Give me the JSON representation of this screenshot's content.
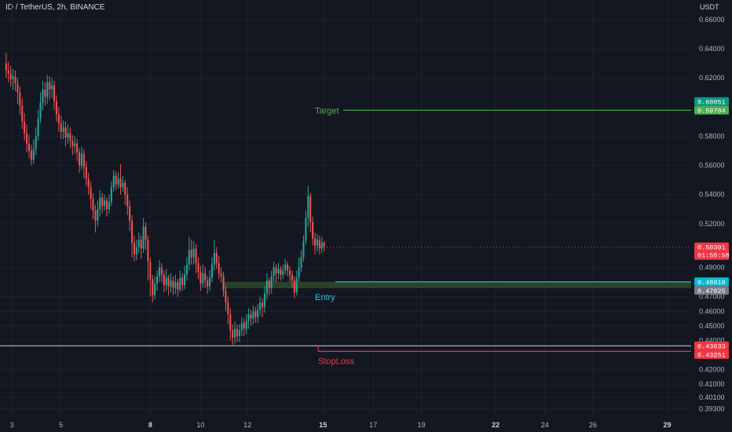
{
  "header": {
    "title": "ID / TetherUS, 2h, BINANCE",
    "currency": "USDT"
  },
  "colors": {
    "background": "#131722",
    "grid": "#1e222d",
    "up": "#26a69a",
    "down": "#ef5350",
    "target": "#4caf50",
    "entry": "#26c6da",
    "stop": "#f23645",
    "support": "#d1d4dc"
  },
  "chart_data": {
    "type": "candlestick",
    "ylim": [
      0.388,
      0.668
    ],
    "y_ticks": [
      0.66,
      0.64,
      0.62,
      0.58,
      0.56,
      0.54,
      0.52,
      0.49,
      0.47,
      0.46,
      0.45,
      0.44,
      0.42,
      0.41,
      0.401,
      0.393
    ],
    "y_tick_labels": [
      "0.66000",
      "0.64000",
      "0.62000",
      "0.58000",
      "0.56000",
      "0.54000",
      "0.52000",
      "0.49000",
      "0.47000",
      "0.46000",
      "0.45000",
      "0.44000",
      "0.42000",
      "0.41000",
      "0.40100",
      "0.39300"
    ],
    "x_ticks": [
      {
        "label": "3",
        "bold": false
      },
      {
        "label": "5",
        "bold": false
      },
      {
        "label": "8",
        "bold": true
      },
      {
        "label": "10",
        "bold": false
      },
      {
        "label": "12",
        "bold": false
      },
      {
        "label": "15",
        "bold": true
      },
      {
        "label": "17",
        "bold": false
      },
      {
        "label": "19",
        "bold": false
      },
      {
        "label": "22",
        "bold": true
      },
      {
        "label": "24",
        "bold": false
      },
      {
        "label": "26",
        "bold": false
      },
      {
        "label": "29",
        "bold": true
      }
    ],
    "x_tick_positions": [
      0.5,
      4.8,
      12.6,
      17.0,
      21.1,
      27.7,
      32.1,
      36.3,
      42.8,
      47.1,
      51.3,
      57.8
    ],
    "x_domain": [
      -1.5,
      62.5
    ],
    "candles": [
      [
        0,
        0.63,
        0.625,
        0.637,
        0.62
      ],
      [
        0.2,
        0.625,
        0.623,
        0.631,
        0.617
      ],
      [
        0.4,
        0.623,
        0.619,
        0.628,
        0.614
      ],
      [
        0.6,
        0.619,
        0.621,
        0.626,
        0.612
      ],
      [
        0.8,
        0.621,
        0.616,
        0.625,
        0.611
      ],
      [
        1.0,
        0.616,
        0.61,
        0.62,
        0.602
      ],
      [
        1.2,
        0.61,
        0.601,
        0.614,
        0.595
      ],
      [
        1.4,
        0.601,
        0.59,
        0.606,
        0.585
      ],
      [
        1.6,
        0.59,
        0.582,
        0.596,
        0.577
      ],
      [
        1.8,
        0.582,
        0.575,
        0.588,
        0.569
      ],
      [
        2.0,
        0.575,
        0.57,
        0.581,
        0.565
      ],
      [
        2.2,
        0.57,
        0.564,
        0.574,
        0.56
      ],
      [
        2.4,
        0.564,
        0.571,
        0.578,
        0.561
      ],
      [
        2.6,
        0.571,
        0.58,
        0.586,
        0.567
      ],
      [
        2.8,
        0.58,
        0.592,
        0.598,
        0.577
      ],
      [
        3.0,
        0.592,
        0.603,
        0.61,
        0.589
      ],
      [
        3.2,
        0.603,
        0.612,
        0.618,
        0.598
      ],
      [
        3.4,
        0.612,
        0.607,
        0.617,
        0.601
      ],
      [
        3.6,
        0.607,
        0.617,
        0.622,
        0.602
      ],
      [
        3.8,
        0.617,
        0.612,
        0.621,
        0.605
      ],
      [
        4.0,
        0.612,
        0.615,
        0.62,
        0.606
      ],
      [
        4.2,
        0.615,
        0.604,
        0.618,
        0.598
      ],
      [
        4.4,
        0.604,
        0.595,
        0.608,
        0.59
      ],
      [
        4.6,
        0.595,
        0.589,
        0.6,
        0.583
      ],
      [
        4.8,
        0.589,
        0.583,
        0.594,
        0.578
      ],
      [
        5.0,
        0.583,
        0.586,
        0.591,
        0.578
      ],
      [
        5.2,
        0.586,
        0.579,
        0.59,
        0.573
      ],
      [
        5.4,
        0.579,
        0.582,
        0.588,
        0.575
      ],
      [
        5.6,
        0.582,
        0.577,
        0.586,
        0.572
      ],
      [
        5.8,
        0.577,
        0.573,
        0.581,
        0.567
      ],
      [
        6.0,
        0.573,
        0.575,
        0.58,
        0.568
      ],
      [
        6.2,
        0.575,
        0.569,
        0.578,
        0.563
      ],
      [
        6.4,
        0.569,
        0.56,
        0.572,
        0.555
      ],
      [
        6.6,
        0.56,
        0.568,
        0.573,
        0.557
      ],
      [
        6.8,
        0.568,
        0.559,
        0.571,
        0.551
      ],
      [
        7.0,
        0.559,
        0.551,
        0.563,
        0.546
      ],
      [
        7.2,
        0.551,
        0.545,
        0.555,
        0.54
      ],
      [
        7.4,
        0.545,
        0.537,
        0.549,
        0.53
      ],
      [
        7.6,
        0.537,
        0.529,
        0.541,
        0.523
      ],
      [
        7.8,
        0.529,
        0.522,
        0.533,
        0.514
      ],
      [
        8.0,
        0.522,
        0.53,
        0.536,
        0.518
      ],
      [
        8.2,
        0.53,
        0.538,
        0.543,
        0.525
      ],
      [
        8.4,
        0.538,
        0.532,
        0.541,
        0.527
      ],
      [
        8.6,
        0.532,
        0.536,
        0.54,
        0.529
      ],
      [
        8.8,
        0.536,
        0.53,
        0.538,
        0.525
      ],
      [
        9.0,
        0.53,
        0.535,
        0.54,
        0.527
      ],
      [
        9.2,
        0.535,
        0.545,
        0.549,
        0.532
      ],
      [
        9.4,
        0.545,
        0.553,
        0.557,
        0.542
      ],
      [
        9.6,
        0.553,
        0.547,
        0.556,
        0.543
      ],
      [
        9.8,
        0.547,
        0.551,
        0.555,
        0.544
      ],
      [
        10.0,
        0.551,
        0.545,
        0.561,
        0.54
      ],
      [
        10.2,
        0.545,
        0.548,
        0.553,
        0.542
      ],
      [
        10.4,
        0.548,
        0.54,
        0.55,
        0.533
      ],
      [
        10.6,
        0.54,
        0.532,
        0.545,
        0.526
      ],
      [
        10.8,
        0.532,
        0.522,
        0.536,
        0.515
      ],
      [
        11.0,
        0.522,
        0.507,
        0.526,
        0.497
      ],
      [
        11.2,
        0.507,
        0.499,
        0.512,
        0.494
      ],
      [
        11.4,
        0.499,
        0.504,
        0.509,
        0.495
      ],
      [
        11.6,
        0.504,
        0.509,
        0.514,
        0.5
      ],
      [
        11.8,
        0.509,
        0.503,
        0.512,
        0.496
      ],
      [
        12.0,
        0.503,
        0.518,
        0.524,
        0.5
      ],
      [
        12.2,
        0.518,
        0.509,
        0.521,
        0.502
      ],
      [
        12.4,
        0.509,
        0.494,
        0.512,
        0.481
      ],
      [
        12.6,
        0.494,
        0.482,
        0.497,
        0.47
      ],
      [
        12.8,
        0.482,
        0.471,
        0.485,
        0.466
      ],
      [
        13.0,
        0.471,
        0.479,
        0.484,
        0.468
      ],
      [
        13.2,
        0.479,
        0.484,
        0.488,
        0.474
      ],
      [
        13.4,
        0.484,
        0.49,
        0.495,
        0.48
      ],
      [
        13.6,
        0.49,
        0.485,
        0.493,
        0.48
      ],
      [
        13.8,
        0.485,
        0.478,
        0.488,
        0.473
      ],
      [
        14.0,
        0.478,
        0.483,
        0.489,
        0.474
      ],
      [
        14.2,
        0.483,
        0.477,
        0.485,
        0.471
      ],
      [
        14.4,
        0.477,
        0.481,
        0.486,
        0.473
      ],
      [
        14.6,
        0.481,
        0.476,
        0.484,
        0.471
      ],
      [
        14.8,
        0.476,
        0.48,
        0.485,
        0.472
      ],
      [
        15.0,
        0.48,
        0.475,
        0.482,
        0.47
      ],
      [
        15.2,
        0.475,
        0.483,
        0.488,
        0.473
      ],
      [
        15.4,
        0.483,
        0.478,
        0.486,
        0.474
      ],
      [
        15.6,
        0.478,
        0.485,
        0.491,
        0.475
      ],
      [
        15.8,
        0.485,
        0.492,
        0.497,
        0.481
      ],
      [
        16.0,
        0.492,
        0.502,
        0.511,
        0.488
      ],
      [
        16.2,
        0.502,
        0.497,
        0.509,
        0.492
      ],
      [
        16.4,
        0.497,
        0.503,
        0.508,
        0.492
      ],
      [
        16.6,
        0.503,
        0.493,
        0.506,
        0.486
      ],
      [
        16.8,
        0.493,
        0.487,
        0.497,
        0.482
      ],
      [
        17.0,
        0.487,
        0.479,
        0.491,
        0.474
      ],
      [
        17.2,
        0.479,
        0.486,
        0.492,
        0.476
      ],
      [
        17.4,
        0.486,
        0.481,
        0.49,
        0.476
      ],
      [
        17.6,
        0.481,
        0.477,
        0.484,
        0.472
      ],
      [
        17.8,
        0.477,
        0.483,
        0.488,
        0.474
      ],
      [
        18.0,
        0.483,
        0.492,
        0.497,
        0.48
      ],
      [
        18.2,
        0.492,
        0.5,
        0.509,
        0.488
      ],
      [
        18.4,
        0.5,
        0.493,
        0.504,
        0.489
      ],
      [
        18.6,
        0.493,
        0.486,
        0.498,
        0.482
      ],
      [
        18.8,
        0.486,
        0.484,
        0.49,
        0.48
      ],
      [
        19.0,
        0.484,
        0.474,
        0.487,
        0.47
      ],
      [
        19.2,
        0.474,
        0.466,
        0.477,
        0.46
      ],
      [
        19.4,
        0.466,
        0.458,
        0.47,
        0.451
      ],
      [
        19.6,
        0.458,
        0.447,
        0.462,
        0.44
      ],
      [
        19.8,
        0.447,
        0.442,
        0.451,
        0.437
      ],
      [
        20.0,
        0.442,
        0.448,
        0.453,
        0.438
      ],
      [
        20.2,
        0.448,
        0.443,
        0.451,
        0.439
      ],
      [
        20.4,
        0.443,
        0.447,
        0.451,
        0.439
      ],
      [
        20.6,
        0.447,
        0.452,
        0.456,
        0.443
      ],
      [
        20.8,
        0.452,
        0.448,
        0.455,
        0.443
      ],
      [
        21.0,
        0.448,
        0.453,
        0.458,
        0.444
      ],
      [
        21.2,
        0.453,
        0.458,
        0.462,
        0.448
      ],
      [
        21.4,
        0.458,
        0.455,
        0.461,
        0.45
      ],
      [
        21.6,
        0.455,
        0.46,
        0.464,
        0.451
      ],
      [
        21.8,
        0.46,
        0.456,
        0.463,
        0.452
      ],
      [
        22.0,
        0.456,
        0.461,
        0.465,
        0.452
      ],
      [
        22.2,
        0.461,
        0.466,
        0.47,
        0.457
      ],
      [
        22.4,
        0.466,
        0.463,
        0.469,
        0.456
      ],
      [
        22.6,
        0.463,
        0.472,
        0.477,
        0.459
      ],
      [
        22.8,
        0.472,
        0.481,
        0.486,
        0.468
      ],
      [
        23.0,
        0.481,
        0.476,
        0.483,
        0.471
      ],
      [
        23.2,
        0.476,
        0.484,
        0.488,
        0.472
      ],
      [
        23.4,
        0.484,
        0.49,
        0.494,
        0.48
      ],
      [
        23.6,
        0.49,
        0.486,
        0.492,
        0.48
      ],
      [
        23.8,
        0.486,
        0.489,
        0.493,
        0.482
      ],
      [
        24.0,
        0.489,
        0.485,
        0.491,
        0.481
      ],
      [
        24.2,
        0.485,
        0.488,
        0.492,
        0.482
      ],
      [
        24.4,
        0.488,
        0.492,
        0.496,
        0.485
      ],
      [
        24.6,
        0.492,
        0.488,
        0.494,
        0.484
      ],
      [
        24.8,
        0.488,
        0.485,
        0.491,
        0.48
      ],
      [
        25.0,
        0.485,
        0.481,
        0.488,
        0.476
      ],
      [
        25.2,
        0.481,
        0.473,
        0.484,
        0.469
      ],
      [
        25.4,
        0.473,
        0.483,
        0.488,
        0.471
      ],
      [
        25.6,
        0.483,
        0.49,
        0.497,
        0.48
      ],
      [
        25.8,
        0.49,
        0.497,
        0.502,
        0.487
      ],
      [
        26.0,
        0.497,
        0.508,
        0.512,
        0.494
      ],
      [
        26.2,
        0.508,
        0.524,
        0.529,
        0.506
      ],
      [
        26.4,
        0.524,
        0.539,
        0.546,
        0.518
      ],
      [
        26.6,
        0.539,
        0.521,
        0.541,
        0.514
      ],
      [
        26.8,
        0.521,
        0.51,
        0.525,
        0.505
      ],
      [
        27.0,
        0.51,
        0.505,
        0.514,
        0.499
      ],
      [
        27.2,
        0.505,
        0.509,
        0.513,
        0.501
      ],
      [
        27.4,
        0.509,
        0.503,
        0.512,
        0.499
      ],
      [
        27.6,
        0.503,
        0.507,
        0.511,
        0.5
      ],
      [
        27.8,
        0.507,
        0.504,
        0.508,
        0.501
      ]
    ],
    "levels": {
      "target": {
        "label": "Target",
        "value": 0.59784,
        "badges": [
          "0.60051",
          "0.59784"
        ]
      },
      "entry": {
        "label": "Entry",
        "value": 0.48018,
        "badges": [
          "0.48018",
          "0.47825"
        ]
      },
      "stop": {
        "label": "StopLoss",
        "value": 0.43251,
        "badges": [
          "0.43633",
          "0.43251"
        ]
      },
      "support": {
        "value": 0.43633
      },
      "zone": [
        0.47825,
        0.48018
      ],
      "current": {
        "value": 0.50391,
        "countdown": "01:50:58"
      }
    }
  }
}
